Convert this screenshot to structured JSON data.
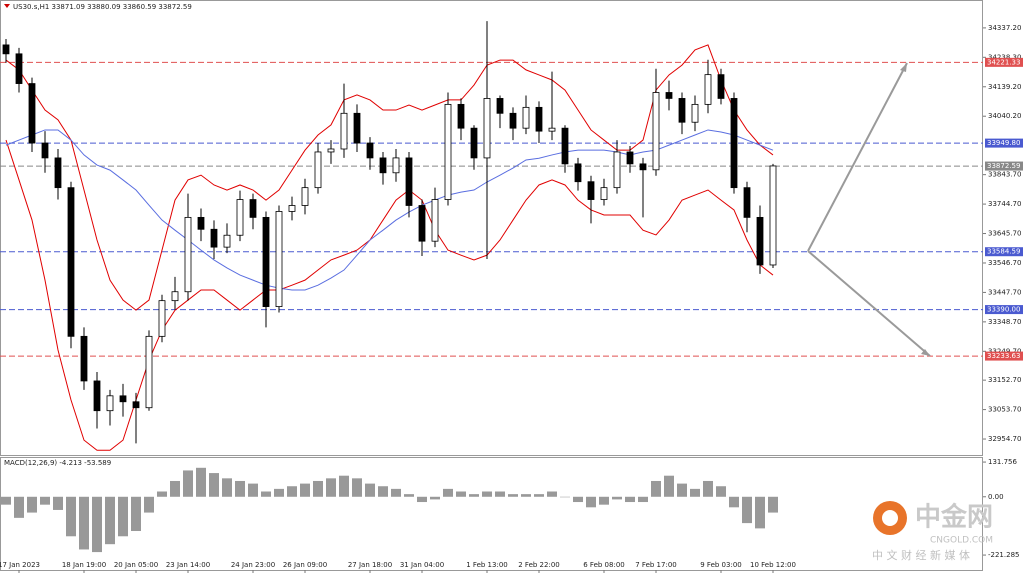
{
  "chart_data": {
    "type": "candlestick",
    "title": "US30.s,H1  33871.09 33880.09 33860.59 33872.59",
    "categories": [
      null,
      "17 Jan 2023",
      null,
      null,
      null,
      null,
      "18 Jan 19:00",
      null,
      null,
      null,
      "20 Jan 05:00",
      null,
      null,
      null,
      "23 Jan 14:00",
      null,
      null,
      null,
      null,
      "24 Jan 23:00",
      null,
      null,
      null,
      "26 Jan 09:00",
      null,
      null,
      null,
      null,
      "27 Jan 18:00",
      null,
      null,
      null,
      "31 Jan 04:00",
      null,
      null,
      null,
      null,
      "1 Feb 13:00",
      null,
      null,
      null,
      "2 Feb 22:00",
      null,
      null,
      null,
      null,
      "6 Feb 08:00",
      null,
      null,
      null,
      "7 Feb 17:00",
      null,
      null,
      null,
      null,
      "9 Feb 03:00",
      null,
      null,
      null,
      "10 Feb 12:00"
    ],
    "open": [
      34280,
      34250,
      34150,
      33950,
      33900,
      33800,
      33300,
      33150,
      33050,
      33100,
      33080,
      33060,
      33300,
      33420,
      33450,
      33700,
      33660,
      33600,
      33640,
      33760,
      33700,
      33400,
      33720,
      33740,
      33800,
      33920,
      33930,
      34050,
      33950,
      33900,
      33850,
      33900,
      33740,
      33620,
      33760,
      34080,
      34000,
      33900,
      34100,
      34050,
      34000,
      34070,
      33990,
      34000,
      33880,
      33820,
      33760,
      33800,
      33920,
      33880,
      33860,
      34120,
      34100,
      34020,
      34080,
      34180,
      34100,
      33800,
      33700,
      33540
    ],
    "high": [
      34300,
      34270,
      34170,
      33990,
      33930,
      33820,
      33330,
      33180,
      33120,
      33140,
      33110,
      33320,
      33440,
      33500,
      33780,
      33730,
      33690,
      33680,
      33790,
      33780,
      33720,
      33740,
      33770,
      33830,
      33950,
      33960,
      34150,
      34080,
      33970,
      33920,
      33930,
      33920,
      33760,
      33800,
      34120,
      34100,
      34010,
      34360,
      34110,
      34070,
      34110,
      34090,
      34190,
      34010,
      33900,
      33840,
      33830,
      33960,
      33940,
      33900,
      34200,
      34160,
      34120,
      34110,
      34230,
      34200,
      34120,
      33820,
      33740,
      33880
    ],
    "low": [
      34220,
      34120,
      33920,
      33850,
      33760,
      33260,
      33120,
      32990,
      33000,
      33030,
      32940,
      33050,
      33280,
      33390,
      33420,
      33620,
      33560,
      33580,
      33620,
      33660,
      33330,
      33380,
      33690,
      33710,
      33780,
      33880,
      33900,
      33920,
      33860,
      33810,
      33820,
      33700,
      33570,
      33600,
      33740,
      33960,
      33860,
      33560,
      34000,
      33960,
      33980,
      33950,
      33960,
      33850,
      33790,
      33680,
      33740,
      33780,
      33850,
      33700,
      33840,
      34060,
      33980,
      33990,
      34050,
      34080,
      33780,
      33650,
      33510,
      33530
    ],
    "close": [
      34250,
      34150,
      33950,
      33900,
      33800,
      33300,
      33150,
      33050,
      33100,
      33080,
      33060,
      33300,
      33420,
      33450,
      33700,
      33660,
      33600,
      33640,
      33760,
      33700,
      33400,
      33720,
      33740,
      33800,
      33920,
      33930,
      34050,
      33950,
      33900,
      33850,
      33900,
      33740,
      33620,
      33760,
      34080,
      34000,
      33900,
      34100,
      34050,
      34000,
      34070,
      33990,
      34000,
      33880,
      33820,
      33760,
      33800,
      33920,
      33880,
      33860,
      34120,
      34100,
      34020,
      34080,
      34180,
      34100,
      33800,
      33700,
      33540,
      33873
    ],
    "series": [
      {
        "name": "upper",
        "color": "#e00000",
        "values": [
          34229,
          34196,
          34128,
          34061,
          34028,
          33960,
          33792,
          33624,
          33489,
          33422,
          33388,
          33422,
          33590,
          33758,
          33826,
          33842,
          33809,
          33792,
          33809,
          33792,
          33758,
          33792,
          33859,
          33926,
          33977,
          34011,
          34095,
          34112,
          34095,
          34061,
          34061,
          34078,
          34061,
          34078,
          34095,
          34095,
          34145,
          34212,
          34229,
          34229,
          34196,
          34179,
          34162,
          34128,
          34061,
          33994,
          33960,
          33926,
          33926,
          33960,
          34128,
          34179,
          34212,
          34263,
          34280,
          34162,
          34061,
          33994,
          33943,
          33910
        ]
      },
      {
        "name": "lower",
        "color": "#e00000",
        "values": [
          33960,
          33826,
          33691,
          33489,
          33254,
          33086,
          32951,
          32917,
          32917,
          32951,
          33086,
          33220,
          33321,
          33388,
          33422,
          33456,
          33456,
          33422,
          33388,
          33422,
          33456,
          33456,
          33472,
          33489,
          33523,
          33557,
          33573,
          33590,
          33624,
          33691,
          33758,
          33792,
          33758,
          33657,
          33590,
          33573,
          33557,
          33573,
          33624,
          33691,
          33758,
          33809,
          33826,
          33809,
          33758,
          33725,
          33708,
          33708,
          33708,
          33657,
          33641,
          33691,
          33758,
          33775,
          33792,
          33758,
          33725,
          33624,
          33540,
          33506
        ]
      },
      {
        "name": "ma",
        "color": "#5a6ee0",
        "values": [
          33943,
          33960,
          33977,
          33994,
          33994,
          33960,
          33910,
          33876,
          33859,
          33826,
          33792,
          33741,
          33691,
          33657,
          33624,
          33590,
          33557,
          33530,
          33506,
          33489,
          33472,
          33462,
          33456,
          33456,
          33472,
          33496,
          33523,
          33573,
          33624,
          33657,
          33691,
          33718,
          33741,
          33758,
          33775,
          33785,
          33792,
          33819,
          33842,
          33866,
          33893,
          33899,
          33910,
          33920,
          33926,
          33926,
          33926,
          33920,
          33910,
          33920,
          33926,
          33943,
          33960,
          33977,
          33994,
          33987,
          33977,
          33960,
          33943,
          33926
        ]
      }
    ],
    "levels": [
      {
        "value": 34221.33,
        "label": "34221.33",
        "color": "#e05050"
      },
      {
        "value": 33949.8,
        "label": "33949.80",
        "color": "#4a5ad0"
      },
      {
        "value": 33872.59,
        "label": "33872.59",
        "color": "#888888"
      },
      {
        "value": 33584.59,
        "label": "33584.59",
        "color": "#4a5ad0"
      },
      {
        "value": 33390,
        "label": "33390.00",
        "color": "#4a5ad0"
      },
      {
        "value": 33233.63,
        "label": "33233.63",
        "color": "#e05050"
      }
    ],
    "ylim": [
      32901,
      34431
    ],
    "yticks": [
      {
        "value": 34337.2,
        "label": "34337.20"
      },
      {
        "value": 34238.3,
        "label": "34238.30"
      },
      {
        "value": 34139.2,
        "label": "34139.20"
      },
      {
        "value": 34040.2,
        "label": "34040.20"
      },
      {
        "value": 33843.7,
        "label": "33843.70"
      },
      {
        "value": 33744.7,
        "label": "33744.70"
      },
      {
        "value": 33645.7,
        "label": "33645.70"
      },
      {
        "value": 33546.7,
        "label": "33546.70"
      },
      {
        "value": 33447.7,
        "label": "33447.70"
      },
      {
        "value": 33348.7,
        "label": "33348.70"
      },
      {
        "value": 33249.7,
        "label": "33249.70"
      },
      {
        "value": 33152.7,
        "label": "33152.70"
      },
      {
        "value": 33053.7,
        "label": "33053.70"
      },
      {
        "value": 32954.7,
        "label": "32954.70"
      }
    ],
    "macd": {
      "title": "MACD(12,26,9) -4.213 -53.589",
      "color": "#999999",
      "values": [
        -30,
        -80,
        -60,
        -30,
        -50,
        -150,
        -200,
        -210,
        -180,
        -150,
        -130,
        -60,
        20,
        60,
        100,
        110,
        90,
        70,
        60,
        50,
        20,
        30,
        40,
        50,
        60,
        70,
        80,
        70,
        50,
        40,
        30,
        10,
        -20,
        -10,
        30,
        20,
        10,
        20,
        20,
        10,
        10,
        10,
        20,
        0,
        -20,
        -40,
        -30,
        -10,
        -20,
        -20,
        60,
        80,
        50,
        30,
        60,
        40,
        -40,
        -100,
        -120,
        -60
      ],
      "ylim": [
        -278,
        151
      ],
      "yticks": [
        131.756,
        {
          "value": 0,
          "label": "0.00"
        },
        -221.285
      ]
    },
    "watermark": {
      "brand": "中金网",
      "site": "CNGOLD.COM",
      "slogan": "中 文 财 经 新 媒 体"
    }
  }
}
